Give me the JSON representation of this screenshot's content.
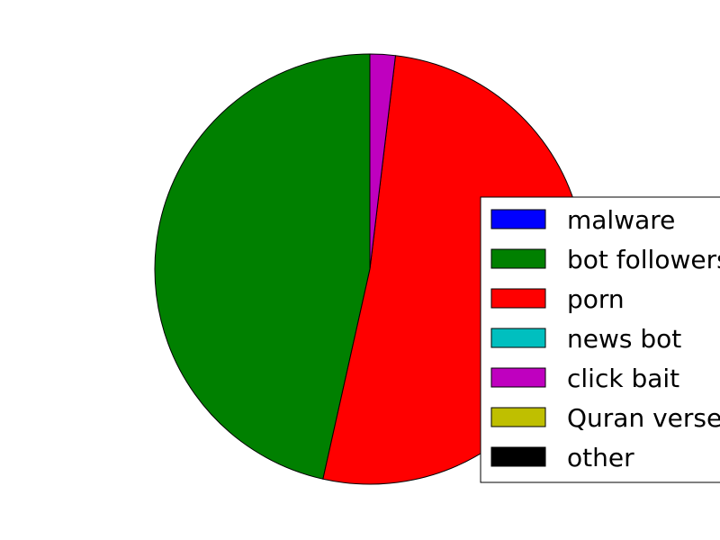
{
  "chart_data": {
    "type": "pie",
    "title": "",
    "labels": [
      "malware",
      "bot followers",
      "porn",
      "news bot",
      "click bait",
      "Quran verses",
      "other"
    ],
    "values": [
      0,
      46.5,
      51.6,
      0,
      1.9,
      0,
      0
    ],
    "colors": [
      "#0000ff",
      "#008000",
      "#ff0000",
      "#00bfbf",
      "#bf00bf",
      "#bfbf00",
      "#000000"
    ],
    "start_angle_deg": 90,
    "direction": "counterclockwise",
    "legend": {
      "position": "right",
      "entries": [
        "malware",
        "bot followers",
        "porn",
        "news bot",
        "click bait",
        "Quran verses",
        "other"
      ]
    }
  }
}
